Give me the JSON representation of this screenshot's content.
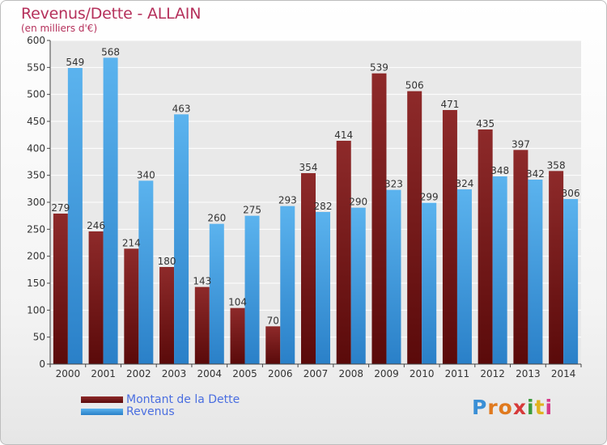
{
  "title": "Revenus/Dette - ALLAIN",
  "subtitle": "(en milliers d'€)",
  "logo_text": "Proxiti",
  "colors": {
    "dette": "#7a1a1a",
    "revenus": "#4aa3e3",
    "title": "#b5305b",
    "legend_text": "#4a6ee0"
  },
  "chart_data": {
    "type": "bar",
    "title": "Revenus/Dette - ALLAIN",
    "subtitle": "(en milliers d'€)",
    "categories": [
      "2000",
      "2001",
      "2002",
      "2003",
      "2004",
      "2005",
      "2006",
      "2007",
      "2008",
      "2009",
      "2010",
      "2011",
      "2012",
      "2013",
      "2014"
    ],
    "series": [
      {
        "name": "Montant de la Dette",
        "values": [
          279,
          246,
          214,
          180,
          143,
          104,
          70,
          354,
          414,
          539,
          506,
          471,
          435,
          397,
          358
        ]
      },
      {
        "name": "Revenus",
        "values": [
          549,
          568,
          340,
          463,
          260,
          275,
          293,
          282,
          290,
          323,
          299,
          324,
          348,
          342,
          306
        ]
      }
    ],
    "ylim": [
      0,
      600
    ],
    "yticks": [
      0,
      50,
      100,
      150,
      200,
      250,
      300,
      350,
      400,
      450,
      500,
      550,
      600
    ],
    "grid": true,
    "legend": "bottom-left"
  }
}
